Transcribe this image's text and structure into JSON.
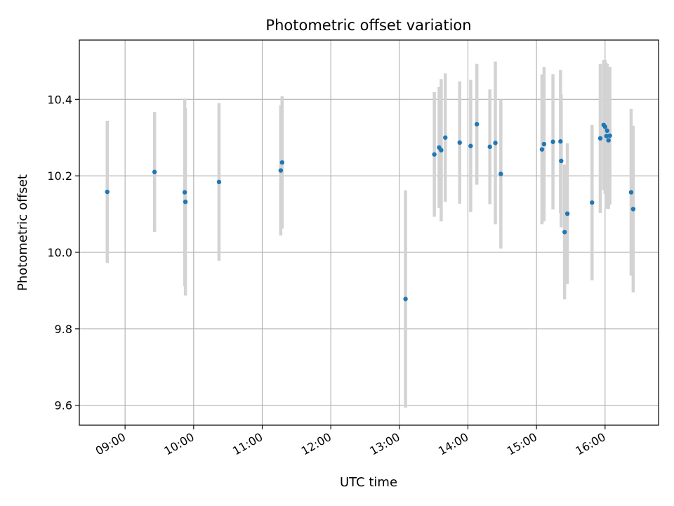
{
  "chart_data": {
    "type": "scatter",
    "title": "Photometric offset variation",
    "xlabel": "UTC time",
    "ylabel": "Photometric offset",
    "x_unit": "hours UTC",
    "xlim": [
      8.333,
      16.78
    ],
    "ylim": [
      9.548,
      10.555
    ],
    "grid": true,
    "x_ticks": [
      {
        "value": 9,
        "label": "09:00"
      },
      {
        "value": 10,
        "label": "10:00"
      },
      {
        "value": 11,
        "label": "11:00"
      },
      {
        "value": 12,
        "label": "12:00"
      },
      {
        "value": 13,
        "label": "13:00"
      },
      {
        "value": 14,
        "label": "14:00"
      },
      {
        "value": 15,
        "label": "15:00"
      },
      {
        "value": 16,
        "label": "16:00"
      }
    ],
    "y_ticks": [
      {
        "value": 9.6,
        "label": "9.6"
      },
      {
        "value": 9.8,
        "label": "9.8"
      },
      {
        "value": 10.0,
        "label": "10.0"
      },
      {
        "value": 10.2,
        "label": "10.2"
      },
      {
        "value": 10.4,
        "label": "10.4"
      }
    ],
    "colors": {
      "point": "#1f77b4",
      "errorbar": "#d3d3d3",
      "grid": "#b0b0b0",
      "axes": "#000000"
    },
    "points": [
      {
        "x": 8.74,
        "y": 10.158,
        "err": 0.186
      },
      {
        "x": 9.43,
        "y": 10.21,
        "err": 0.157
      },
      {
        "x": 9.87,
        "y": 10.157,
        "err": 0.245
      },
      {
        "x": 9.88,
        "y": 10.132,
        "err": 0.245
      },
      {
        "x": 10.37,
        "y": 10.184,
        "err": 0.206
      },
      {
        "x": 11.27,
        "y": 10.214,
        "err": 0.17
      },
      {
        "x": 11.29,
        "y": 10.235,
        "err": 0.173
      },
      {
        "x": 13.09,
        "y": 9.878,
        "err": 0.284
      },
      {
        "x": 13.51,
        "y": 10.256,
        "err": 0.163
      },
      {
        "x": 13.58,
        "y": 10.274,
        "err": 0.158
      },
      {
        "x": 13.61,
        "y": 10.267,
        "err": 0.186
      },
      {
        "x": 13.67,
        "y": 10.3,
        "err": 0.168
      },
      {
        "x": 13.88,
        "y": 10.287,
        "err": 0.16
      },
      {
        "x": 14.04,
        "y": 10.278,
        "err": 0.173
      },
      {
        "x": 14.13,
        "y": 10.335,
        "err": 0.158
      },
      {
        "x": 14.32,
        "y": 10.276,
        "err": 0.15
      },
      {
        "x": 14.4,
        "y": 10.286,
        "err": 0.213
      },
      {
        "x": 14.48,
        "y": 10.205,
        "err": 0.195
      },
      {
        "x": 15.08,
        "y": 10.269,
        "err": 0.196
      },
      {
        "x": 15.11,
        "y": 10.283,
        "err": 0.202
      },
      {
        "x": 15.24,
        "y": 10.289,
        "err": 0.177
      },
      {
        "x": 15.35,
        "y": 10.29,
        "err": 0.187
      },
      {
        "x": 15.36,
        "y": 10.239,
        "err": 0.174
      },
      {
        "x": 15.41,
        "y": 10.053,
        "err": 0.176
      },
      {
        "x": 15.45,
        "y": 10.101,
        "err": 0.184
      },
      {
        "x": 15.81,
        "y": 10.13,
        "err": 0.203
      },
      {
        "x": 15.93,
        "y": 10.298,
        "err": 0.195
      },
      {
        "x": 15.98,
        "y": 10.333,
        "err": 0.17
      },
      {
        "x": 16.0,
        "y": 10.328,
        "err": 0.175
      },
      {
        "x": 16.02,
        "y": 10.304,
        "err": 0.19
      },
      {
        "x": 16.03,
        "y": 10.318,
        "err": 0.175
      },
      {
        "x": 16.05,
        "y": 10.293,
        "err": 0.18
      },
      {
        "x": 16.07,
        "y": 10.305,
        "err": 0.18
      },
      {
        "x": 16.38,
        "y": 10.157,
        "err": 0.218
      },
      {
        "x": 16.41,
        "y": 10.113,
        "err": 0.218
      }
    ]
  }
}
